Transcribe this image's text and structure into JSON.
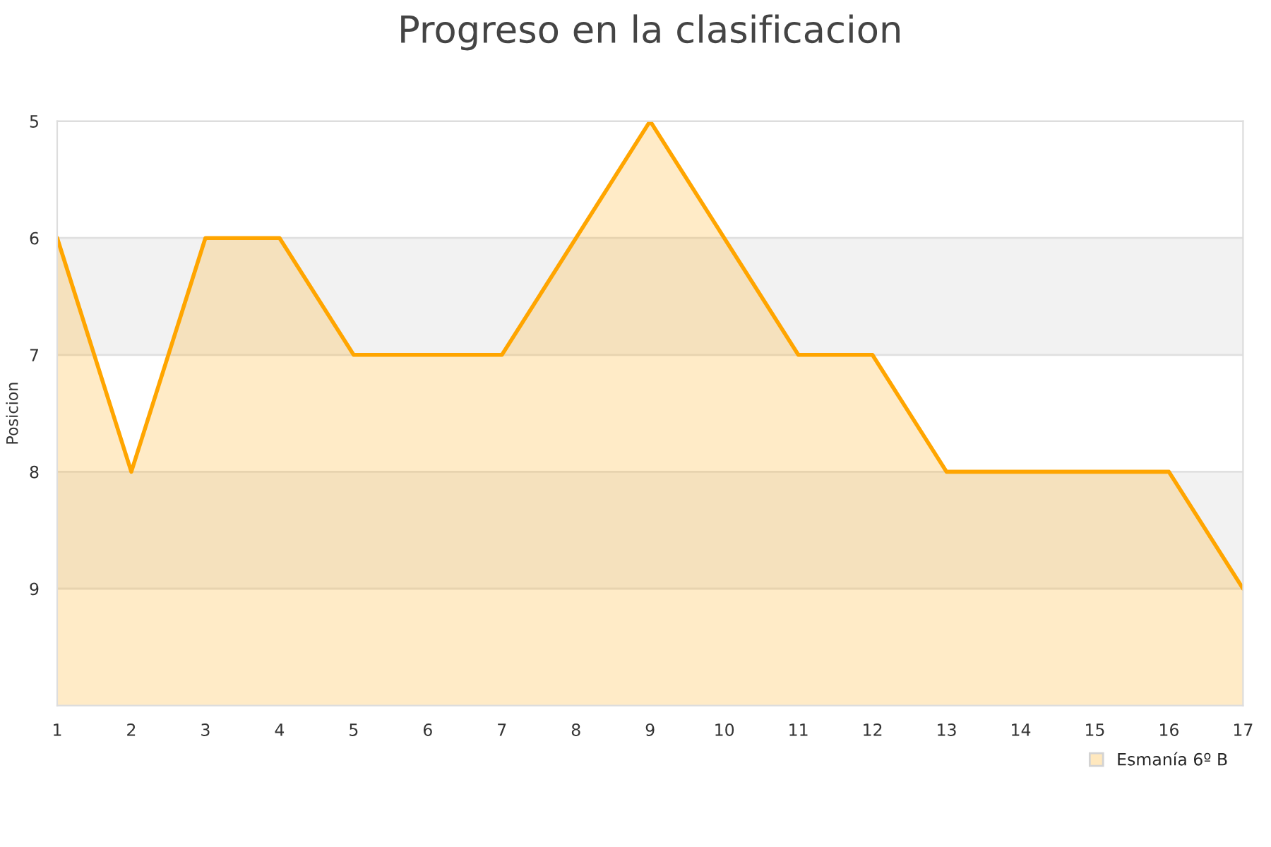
{
  "chart_data": {
    "type": "area",
    "title": "Progreso en la clasificacion",
    "ylabel": "Posicion",
    "x": [
      1,
      2,
      3,
      4,
      5,
      6,
      7,
      8,
      9,
      10,
      11,
      12,
      13,
      14,
      15,
      16,
      17
    ],
    "series": [
      {
        "name": "Esmanía 6º B",
        "color": "#ffa500",
        "values": [
          6,
          8,
          6,
          6,
          7,
          7,
          7,
          6,
          5,
          6,
          7,
          7,
          8,
          8,
          8,
          8,
          9
        ]
      }
    ],
    "xlim": [
      1,
      17
    ],
    "xticks": [
      1,
      2,
      3,
      4,
      5,
      6,
      7,
      8,
      9,
      10,
      11,
      12,
      13,
      14,
      15,
      16,
      17
    ],
    "ylim": [
      10,
      5
    ],
    "yticks": [
      5,
      6,
      7,
      8,
      9
    ],
    "bands": [
      {
        "axis": "y",
        "from": 6,
        "to": 7,
        "color": "#f2f2f2"
      },
      {
        "axis": "y",
        "from": 8,
        "to": 9,
        "color": "#f2f2f2"
      }
    ],
    "grid": "y",
    "legend": "bottom right",
    "marker": "none",
    "line_style": "solid"
  }
}
